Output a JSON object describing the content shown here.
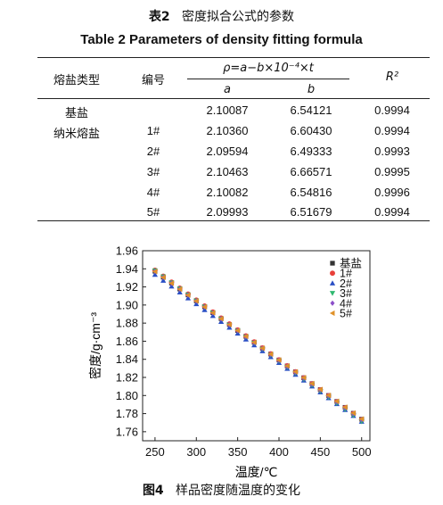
{
  "table": {
    "caption_cn_num": "表2",
    "caption_cn_text": "密度拟合公式的参数",
    "caption_en": "Table 2    Parameters of density fitting formula",
    "headers": {
      "salt_type": "熔盐类型",
      "number": "编号",
      "formula": "ρ=a−b×10⁻⁴×t",
      "a": "a",
      "b": "b",
      "r2": "R²"
    },
    "salt_labels": [
      "基盐",
      "纳米熔盐"
    ],
    "rows": [
      {
        "id": "",
        "a": "2.10087",
        "b": "6.54121",
        "r2": "0.9994"
      },
      {
        "id": "1#",
        "a": "2.10360",
        "b": "6.60430",
        "r2": "0.9994"
      },
      {
        "id": "2#",
        "a": "2.09594",
        "b": "6.49333",
        "r2": "0.9993"
      },
      {
        "id": "3#",
        "a": "2.10463",
        "b": "6.66571",
        "r2": "0.9995"
      },
      {
        "id": "4#",
        "a": "2.10082",
        "b": "6.54816",
        "r2": "0.9996"
      },
      {
        "id": "5#",
        "a": "2.09993",
        "b": "6.51679",
        "r2": "0.9994"
      }
    ]
  },
  "figure": {
    "caption_num": "图4",
    "caption_text": "样品密度随温度的变化"
  },
  "chart_data": {
    "type": "scatter",
    "xlabel": "温度/℃",
    "ylabel": "密度/g·cm⁻³",
    "xlim": [
      235,
      510
    ],
    "ylim": [
      1.75,
      1.96
    ],
    "xticks": [
      250,
      300,
      350,
      400,
      450,
      500
    ],
    "yticks": [
      1.76,
      1.78,
      1.8,
      1.82,
      1.84,
      1.86,
      1.88,
      1.9,
      1.92,
      1.94,
      1.96
    ],
    "legend_position": "top-right",
    "x": [
      250,
      260,
      270,
      280,
      290,
      300,
      310,
      320,
      330,
      340,
      350,
      360,
      370,
      380,
      390,
      400,
      410,
      420,
      430,
      440,
      450,
      460,
      470,
      480,
      490,
      500
    ],
    "series": [
      {
        "name": "基盐",
        "marker": "square",
        "color": "#333333",
        "a": 2.10087,
        "b": 6.54121
      },
      {
        "name": "1#",
        "marker": "circle",
        "color": "#e8403a",
        "a": 2.1036,
        "b": 6.6043
      },
      {
        "name": "2#",
        "marker": "triangle-up",
        "color": "#2a4fc4",
        "a": 2.09594,
        "b": 6.49333
      },
      {
        "name": "3#",
        "marker": "triangle-down",
        "color": "#2fb870",
        "a": 2.10463,
        "b": 6.66571
      },
      {
        "name": "4#",
        "marker": "diamond",
        "color": "#8c4fc9",
        "a": 2.10082,
        "b": 6.54816
      },
      {
        "name": "5#",
        "marker": "triangle-left",
        "color": "#e0922a",
        "a": 2.09993,
        "b": 6.51679
      }
    ]
  }
}
